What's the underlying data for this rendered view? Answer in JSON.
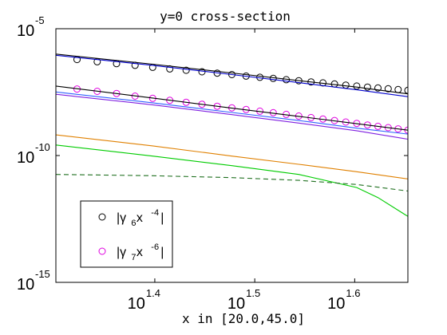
{
  "chart_data": {
    "type": "line",
    "title": "y=0 cross-section",
    "xlabel": "x in [20.0,45.0]",
    "ylabel": "",
    "xscale": "log",
    "yscale": "log",
    "xlim": [
      20.0,
      45.0
    ],
    "ylim": [
      1e-15,
      1e-05
    ],
    "grid": false,
    "x_ticks": [
      {
        "base": "10",
        "exp": "1.4",
        "value": 25.119
      },
      {
        "base": "10",
        "exp": "1.5",
        "value": 31.623
      },
      {
        "base": "10",
        "exp": "1.6",
        "value": 39.811
      }
    ],
    "y_ticks": [
      {
        "base": "10",
        "exp": "-5",
        "value": 1e-05
      },
      {
        "base": "10",
        "exp": "-10",
        "value": 1e-10
      },
      {
        "base": "10",
        "exp": "-15",
        "value": 1e-15
      }
    ],
    "legend": {
      "location": "lower-left",
      "entries": [
        {
          "marker": "circle",
          "color": "#000000",
          "gamma_sub": "6",
          "x_exp": "-4"
        },
        {
          "marker": "circle",
          "color": "#e000e0",
          "gamma_sub": "7",
          "x_exp": "-6"
        }
      ]
    },
    "series": [
      {
        "name": "|γ6 x^-4|",
        "style": "marker",
        "marker": "circle",
        "color": "#000000",
        "x": [
          21.0,
          22.0,
          23.0,
          24.0,
          25.0,
          26.0,
          27.0,
          28.0,
          29.0,
          30.0,
          31.0,
          32.0,
          33.0,
          34.0,
          35.0,
          36.0,
          37.0,
          38.0,
          39.0,
          40.0,
          41.0,
          42.0,
          43.0,
          44.0,
          45.0
        ],
        "y": [
          6.1e-07,
          5e-07,
          4.2e-07,
          3.6e-07,
          3e-07,
          2.6e-07,
          2.3e-07,
          2e-07,
          1.77e-07,
          1.56e-07,
          1.36e-07,
          1.22e-07,
          1.1e-07,
          9.8e-08,
          8.9e-08,
          8e-08,
          7.3e-08,
          6.6e-08,
          6e-08,
          5.5e-08,
          5e-08,
          4.6e-08,
          4.3e-08,
          4e-08,
          3.7e-08
        ]
      },
      {
        "name": "|γ7 x^-6|",
        "style": "marker",
        "marker": "circle",
        "color": "#e000e0",
        "x": [
          21.0,
          22.0,
          23.0,
          24.0,
          25.0,
          26.0,
          27.0,
          28.0,
          29.0,
          30.0,
          31.0,
          32.0,
          33.0,
          34.0,
          35.0,
          36.0,
          37.0,
          38.0,
          39.0,
          40.0,
          41.0,
          42.0,
          43.0,
          44.0,
          45.0
        ],
        "y": [
          4.2e-08,
          3.4e-08,
          2.8e-08,
          2.2e-08,
          1.8e-08,
          1.5e-08,
          1.25e-08,
          1.05e-08,
          8.8e-09,
          7.6e-09,
          6.5e-09,
          5.6e-09,
          4.9e-09,
          4.2e-09,
          3.6e-09,
          3.15e-09,
          2.75e-09,
          2.4e-09,
          2.1e-09,
          1.85e-09,
          1.6e-09,
          1.42e-09,
          1.26e-09,
          1.12e-09,
          1e-09
        ]
      },
      {
        "style": "line",
        "color": "#000000",
        "dash": false,
        "x": [
          20.0,
          25.0,
          30.0,
          35.0,
          40.0,
          45.0
        ],
        "y": [
          1e-06,
          4e-07,
          1.8e-07,
          9e-08,
          5e-08,
          2.7e-08
        ]
      },
      {
        "style": "line",
        "color": "#0000cc",
        "dash": false,
        "x": [
          20.0,
          25.0,
          30.0,
          35.0,
          40.0,
          45.0
        ],
        "y": [
          9e-07,
          3.6e-07,
          1.55e-07,
          7.5e-08,
          3.9e-08,
          2.1e-08
        ]
      },
      {
        "style": "line",
        "color": "#000000",
        "dash": false,
        "x": [
          20.0,
          25.0,
          30.0,
          35.0,
          40.0,
          45.0
        ],
        "y": [
          5.5e-08,
          1.85e-08,
          7.4e-09,
          3.5e-09,
          1.8e-09,
          1e-09
        ]
      },
      {
        "style": "line",
        "color": "#3060ff",
        "dash": false,
        "x": [
          20.0,
          25.0,
          30.0,
          35.0,
          40.0,
          45.0
        ],
        "y": [
          3.2e-08,
          1.2e-08,
          5e-09,
          2.4e-09,
          1.2e-09,
          7e-10
        ]
      },
      {
        "style": "line",
        "color": "#8020e0",
        "dash": false,
        "x": [
          20.0,
          25.0,
          30.0,
          35.0,
          40.0,
          45.0
        ],
        "y": [
          2.6e-08,
          1e-08,
          4.1e-09,
          1.9e-09,
          9.5e-10,
          4.4e-10
        ]
      },
      {
        "style": "line",
        "color": "#e08000",
        "dash": false,
        "x": [
          20.0,
          25.0,
          30.0,
          35.0,
          40.0,
          45.0
        ],
        "y": [
          6.5e-10,
          2.4e-10,
          9.5e-11,
          4.5e-11,
          2.3e-11,
          1.2e-11
        ]
      },
      {
        "style": "line",
        "color": "#00cc00",
        "dash": false,
        "x": [
          20.0,
          25.0,
          30.0,
          35.0,
          40.0,
          42.0,
          45.0
        ],
        "y": [
          2.6e-10,
          9.5e-11,
          4e-11,
          1.8e-11,
          5.5e-12,
          2.2e-12,
          4e-13
        ]
      },
      {
        "style": "line",
        "color": "#207020",
        "dash": true,
        "x": [
          20.0,
          25.0,
          30.0,
          35.0,
          40.0,
          45.0
        ],
        "y": [
          1.8e-11,
          1.6e-11,
          1.35e-11,
          1.05e-11,
          7.2e-12,
          4e-12
        ]
      }
    ]
  }
}
